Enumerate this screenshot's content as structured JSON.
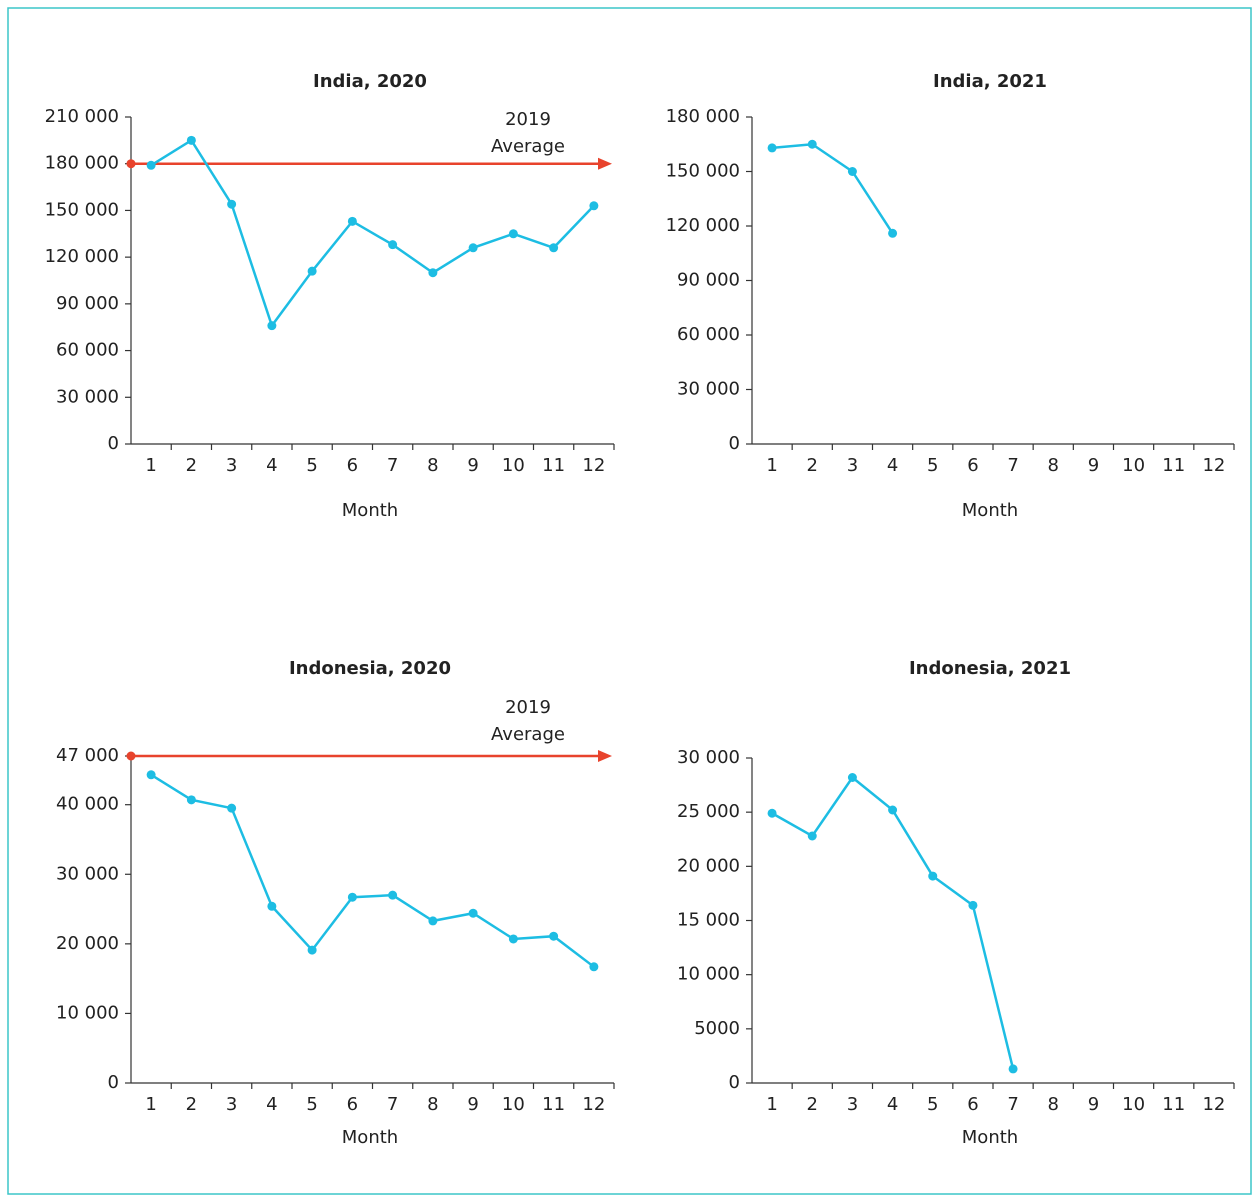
{
  "chart_data": [
    {
      "type": "line",
      "title": "India, 2020",
      "x_label": "Month",
      "categories": [
        "1",
        "2",
        "3",
        "4",
        "5",
        "6",
        "7",
        "8",
        "9",
        "10",
        "11",
        "12"
      ],
      "values": [
        179000,
        195000,
        154000,
        76000,
        111000,
        143000,
        128000,
        110000,
        126000,
        135000,
        126000,
        153000
      ],
      "color": "#1dbde3",
      "reference_line": {
        "value": 180000,
        "color": "#e8432c"
      },
      "annotation": [
        "2019",
        "Average"
      ],
      "ylim": [
        0,
        210000
      ],
      "yticks": [
        0,
        {
          "value": 30000,
          "label": "30 000"
        },
        {
          "value": 60000,
          "label": "60 000"
        },
        {
          "value": 90000,
          "label": "90 000"
        },
        {
          "value": 120000,
          "label": "120 000"
        },
        {
          "value": 150000,
          "label": "150 000"
        },
        {
          "value": 180000,
          "label": "180 000"
        },
        {
          "value": 210000,
          "label": "210 000"
        }
      ]
    },
    {
      "type": "line",
      "title": "India, 2021",
      "x_label": "Month",
      "categories": [
        "1",
        "2",
        "3",
        "4",
        "5",
        "6",
        "7",
        "8",
        "9",
        "10",
        "11",
        "12"
      ],
      "values": [
        163000,
        165000,
        150000,
        116000,
        null,
        null,
        null,
        null,
        null,
        null,
        null,
        null
      ],
      "color": "#1dbde3",
      "ylim": [
        0,
        180000
      ],
      "yticks": [
        0,
        {
          "value": 30000,
          "label": "30 000"
        },
        {
          "value": 60000,
          "label": "60 000"
        },
        {
          "value": 90000,
          "label": "90 000"
        },
        {
          "value": 120000,
          "label": "120 000"
        },
        {
          "value": 150000,
          "label": "150 000"
        },
        {
          "value": 180000,
          "label": "180 000"
        }
      ]
    },
    {
      "type": "line",
      "title": "Indonesia, 2020",
      "x_label": "Month",
      "categories": [
        "1",
        "2",
        "3",
        "4",
        "5",
        "6",
        "7",
        "8",
        "9",
        "10",
        "11",
        "12"
      ],
      "values": [
        44300,
        40700,
        39500,
        25400,
        19100,
        26700,
        27000,
        23300,
        24400,
        20700,
        21100,
        16700
      ],
      "color": "#1dbde3",
      "reference_line": {
        "value": 47000,
        "color": "#e8432c"
      },
      "annotation": [
        "2019",
        "Average"
      ],
      "ylim": [
        0,
        47000
      ],
      "yticks": [
        0,
        {
          "value": 10000,
          "label": "10 000"
        },
        {
          "value": 20000,
          "label": "20 000"
        },
        {
          "value": 30000,
          "label": "30 000"
        },
        {
          "value": 40000,
          "label": "40 000"
        },
        {
          "value": 47000,
          "label": "47 000"
        }
      ]
    },
    {
      "type": "line",
      "title": "Indonesia, 2021",
      "x_label": "Month",
      "categories": [
        "1",
        "2",
        "3",
        "4",
        "5",
        "6",
        "7",
        "8",
        "9",
        "10",
        "11",
        "12"
      ],
      "values": [
        24900,
        22800,
        28200,
        25200,
        19100,
        16400,
        1300,
        null,
        null,
        null,
        null,
        null
      ],
      "color": "#1dbde3",
      "ylim": [
        0,
        30000
      ],
      "yticks": [
        0,
        5000,
        {
          "value": 10000,
          "label": "10 000"
        },
        {
          "value": 15000,
          "label": "15 000"
        },
        {
          "value": 20000,
          "label": "20 000"
        },
        {
          "value": 25000,
          "label": "25 000"
        },
        {
          "value": 30000,
          "label": "30 000"
        }
      ]
    }
  ]
}
